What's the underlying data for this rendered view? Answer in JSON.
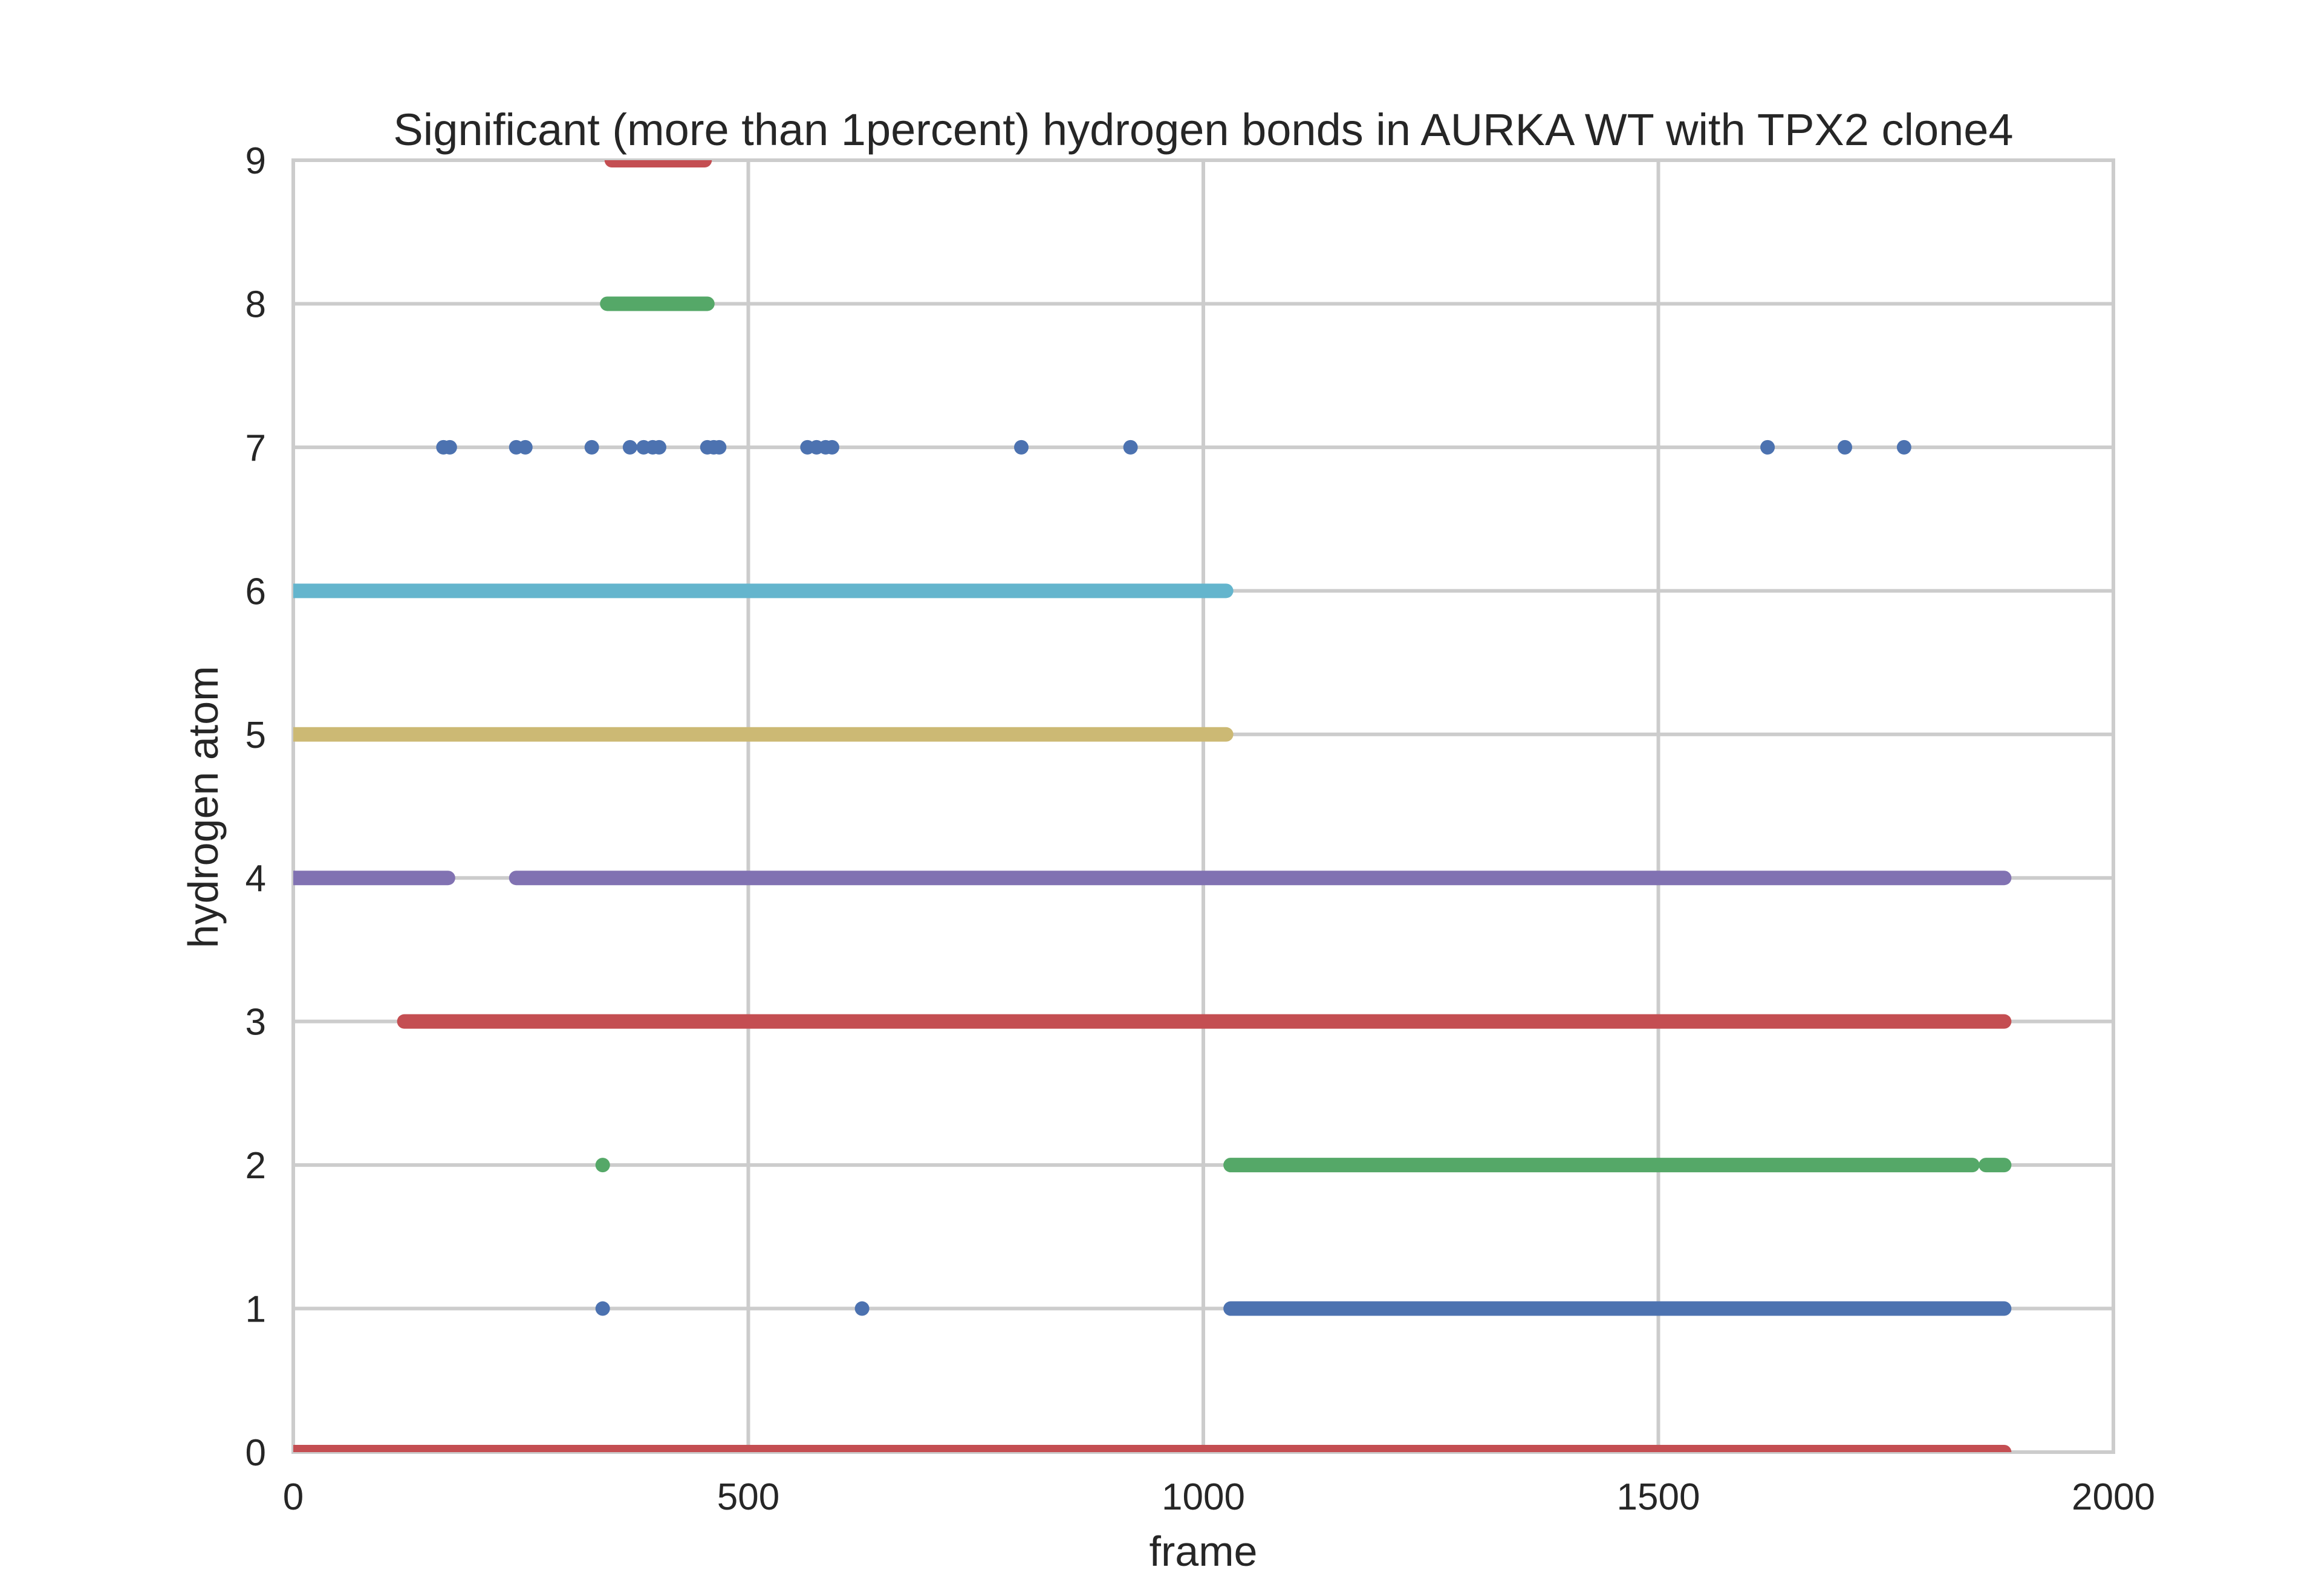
{
  "chart_data": {
    "type": "scatter",
    "title": "Significant (more than 1percent) hydrogen bonds in AURKA WT with TPX2 clone4",
    "xlabel": "frame",
    "ylabel": "hydrogen atom",
    "xlim": [
      0,
      2000
    ],
    "ylim": [
      0,
      9
    ],
    "xticks": [
      0,
      500,
      1000,
      1500,
      2000
    ],
    "yticks": [
      0,
      1,
      2,
      3,
      4,
      5,
      6,
      7,
      8,
      9
    ],
    "grid": true,
    "legend": "none",
    "series": [
      {
        "color": "#C44E52",
        "y": 0,
        "segments": [
          [
            0,
            1880
          ]
        ],
        "points": []
      },
      {
        "color": "#4C72B0",
        "y": 1,
        "segments": [
          [
            1030,
            1880
          ]
        ],
        "points": [
          340,
          625
        ]
      },
      {
        "color": "#55A868",
        "y": 2,
        "segments": [
          [
            1030,
            1845
          ],
          [
            1860,
            1880
          ]
        ],
        "points": [
          340
        ]
      },
      {
        "color": "#C44E52",
        "y": 3,
        "segments": [
          [
            122,
            1880
          ]
        ],
        "points": []
      },
      {
        "color": "#8172B2",
        "y": 4,
        "segments": [
          [
            0,
            170
          ],
          [
            245,
            1880
          ]
        ],
        "points": []
      },
      {
        "color": "#CCB974",
        "y": 5,
        "segments": [
          [
            0,
            1025
          ]
        ],
        "points": []
      },
      {
        "color": "#64B5CD",
        "y": 6,
        "segments": [
          [
            0,
            1025
          ]
        ],
        "points": []
      },
      {
        "color": "#4C72B0",
        "y": 7,
        "segments": [],
        "points": [
          165,
          172,
          245,
          255,
          328,
          370,
          385,
          395,
          402,
          455,
          462,
          468,
          565,
          575,
          585,
          592,
          800,
          920,
          1620,
          1705,
          1770
        ]
      },
      {
        "color": "#55A868",
        "y": 8,
        "segments": [
          [
            345,
            455
          ]
        ],
        "points": []
      },
      {
        "color": "#C44E52",
        "y": 9,
        "segments": [
          [
            350,
            452
          ]
        ],
        "points": []
      }
    ]
  }
}
